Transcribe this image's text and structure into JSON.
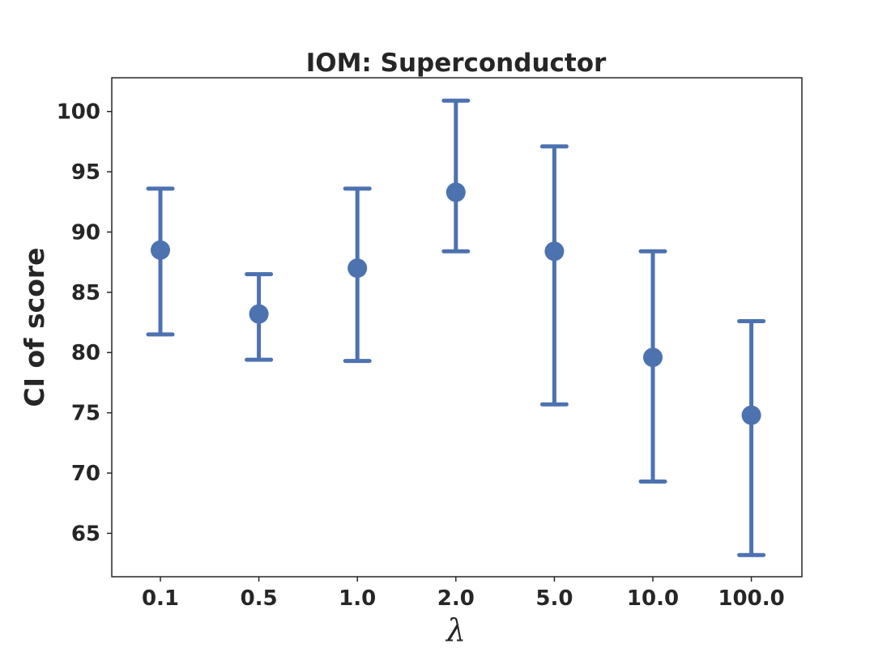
{
  "chart_data": {
    "type": "scatter",
    "title": "IOM: Superconductor",
    "xlabel": "λ",
    "ylabel": "CI of score",
    "categories": [
      "0.1",
      "0.5",
      "1.0",
      "2.0",
      "5.0",
      "10.0",
      "100.0"
    ],
    "y_ticks": [
      "65",
      "70",
      "75",
      "80",
      "85",
      "90",
      "95",
      "100"
    ],
    "ylim": [
      61.4,
      102.8
    ],
    "series": [
      {
        "color": "#4c72b0",
        "values": [
          88.5,
          83.2,
          87.0,
          93.3,
          88.4,
          79.6,
          74.8
        ],
        "ci_low": [
          81.5,
          79.4,
          79.3,
          88.4,
          75.7,
          69.3,
          63.2
        ],
        "ci_high": [
          93.6,
          86.5,
          93.6,
          100.9,
          97.1,
          88.4,
          82.6
        ]
      }
    ],
    "grid": false,
    "legend": "none"
  }
}
